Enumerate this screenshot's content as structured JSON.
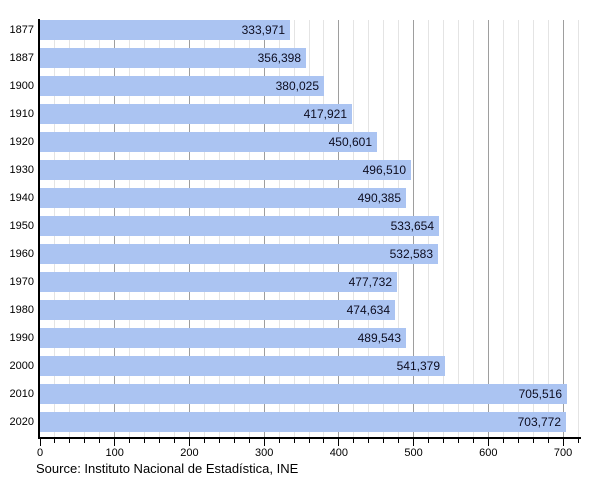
{
  "chart_data": {
    "type": "bar",
    "orientation": "horizontal",
    "categories": [
      "1877",
      "1887",
      "1900",
      "1910",
      "1920",
      "1930",
      "1940",
      "1950",
      "1960",
      "1970",
      "1980",
      "1990",
      "2000",
      "2010",
      "2020"
    ],
    "values": [
      333971,
      356398,
      380025,
      417921,
      450601,
      496510,
      490385,
      533654,
      532583,
      477732,
      474634,
      489543,
      541379,
      705516,
      703772
    ],
    "value_labels": [
      "333,971",
      "356,398",
      "380,025",
      "417,921",
      "450,601",
      "496,510",
      "490,385",
      "533,654",
      "532,583",
      "477,732",
      "474,634",
      "489,543",
      "541,379",
      "705,516",
      "703,772"
    ],
    "title": "",
    "xlabel": "",
    "ylabel": "",
    "x_tick_labels": [
      "0",
      "100",
      "200",
      "300",
      "400",
      "500",
      "600",
      "700"
    ],
    "xlim": [
      0,
      720
    ],
    "x_major_tick_interval": 100,
    "x_minor_tick_interval": 20,
    "axis_value_scale": 1000,
    "grid": true,
    "legend": false,
    "bar_color": "#abc4f2",
    "major_grid_color": "#9e9e9e",
    "minor_grid_color": "#e4e4e4",
    "axis_color": "#000000",
    "value_label_color": "#0d0d20"
  },
  "source_note": "Source: Instituto Nacional de Estadística, INE"
}
